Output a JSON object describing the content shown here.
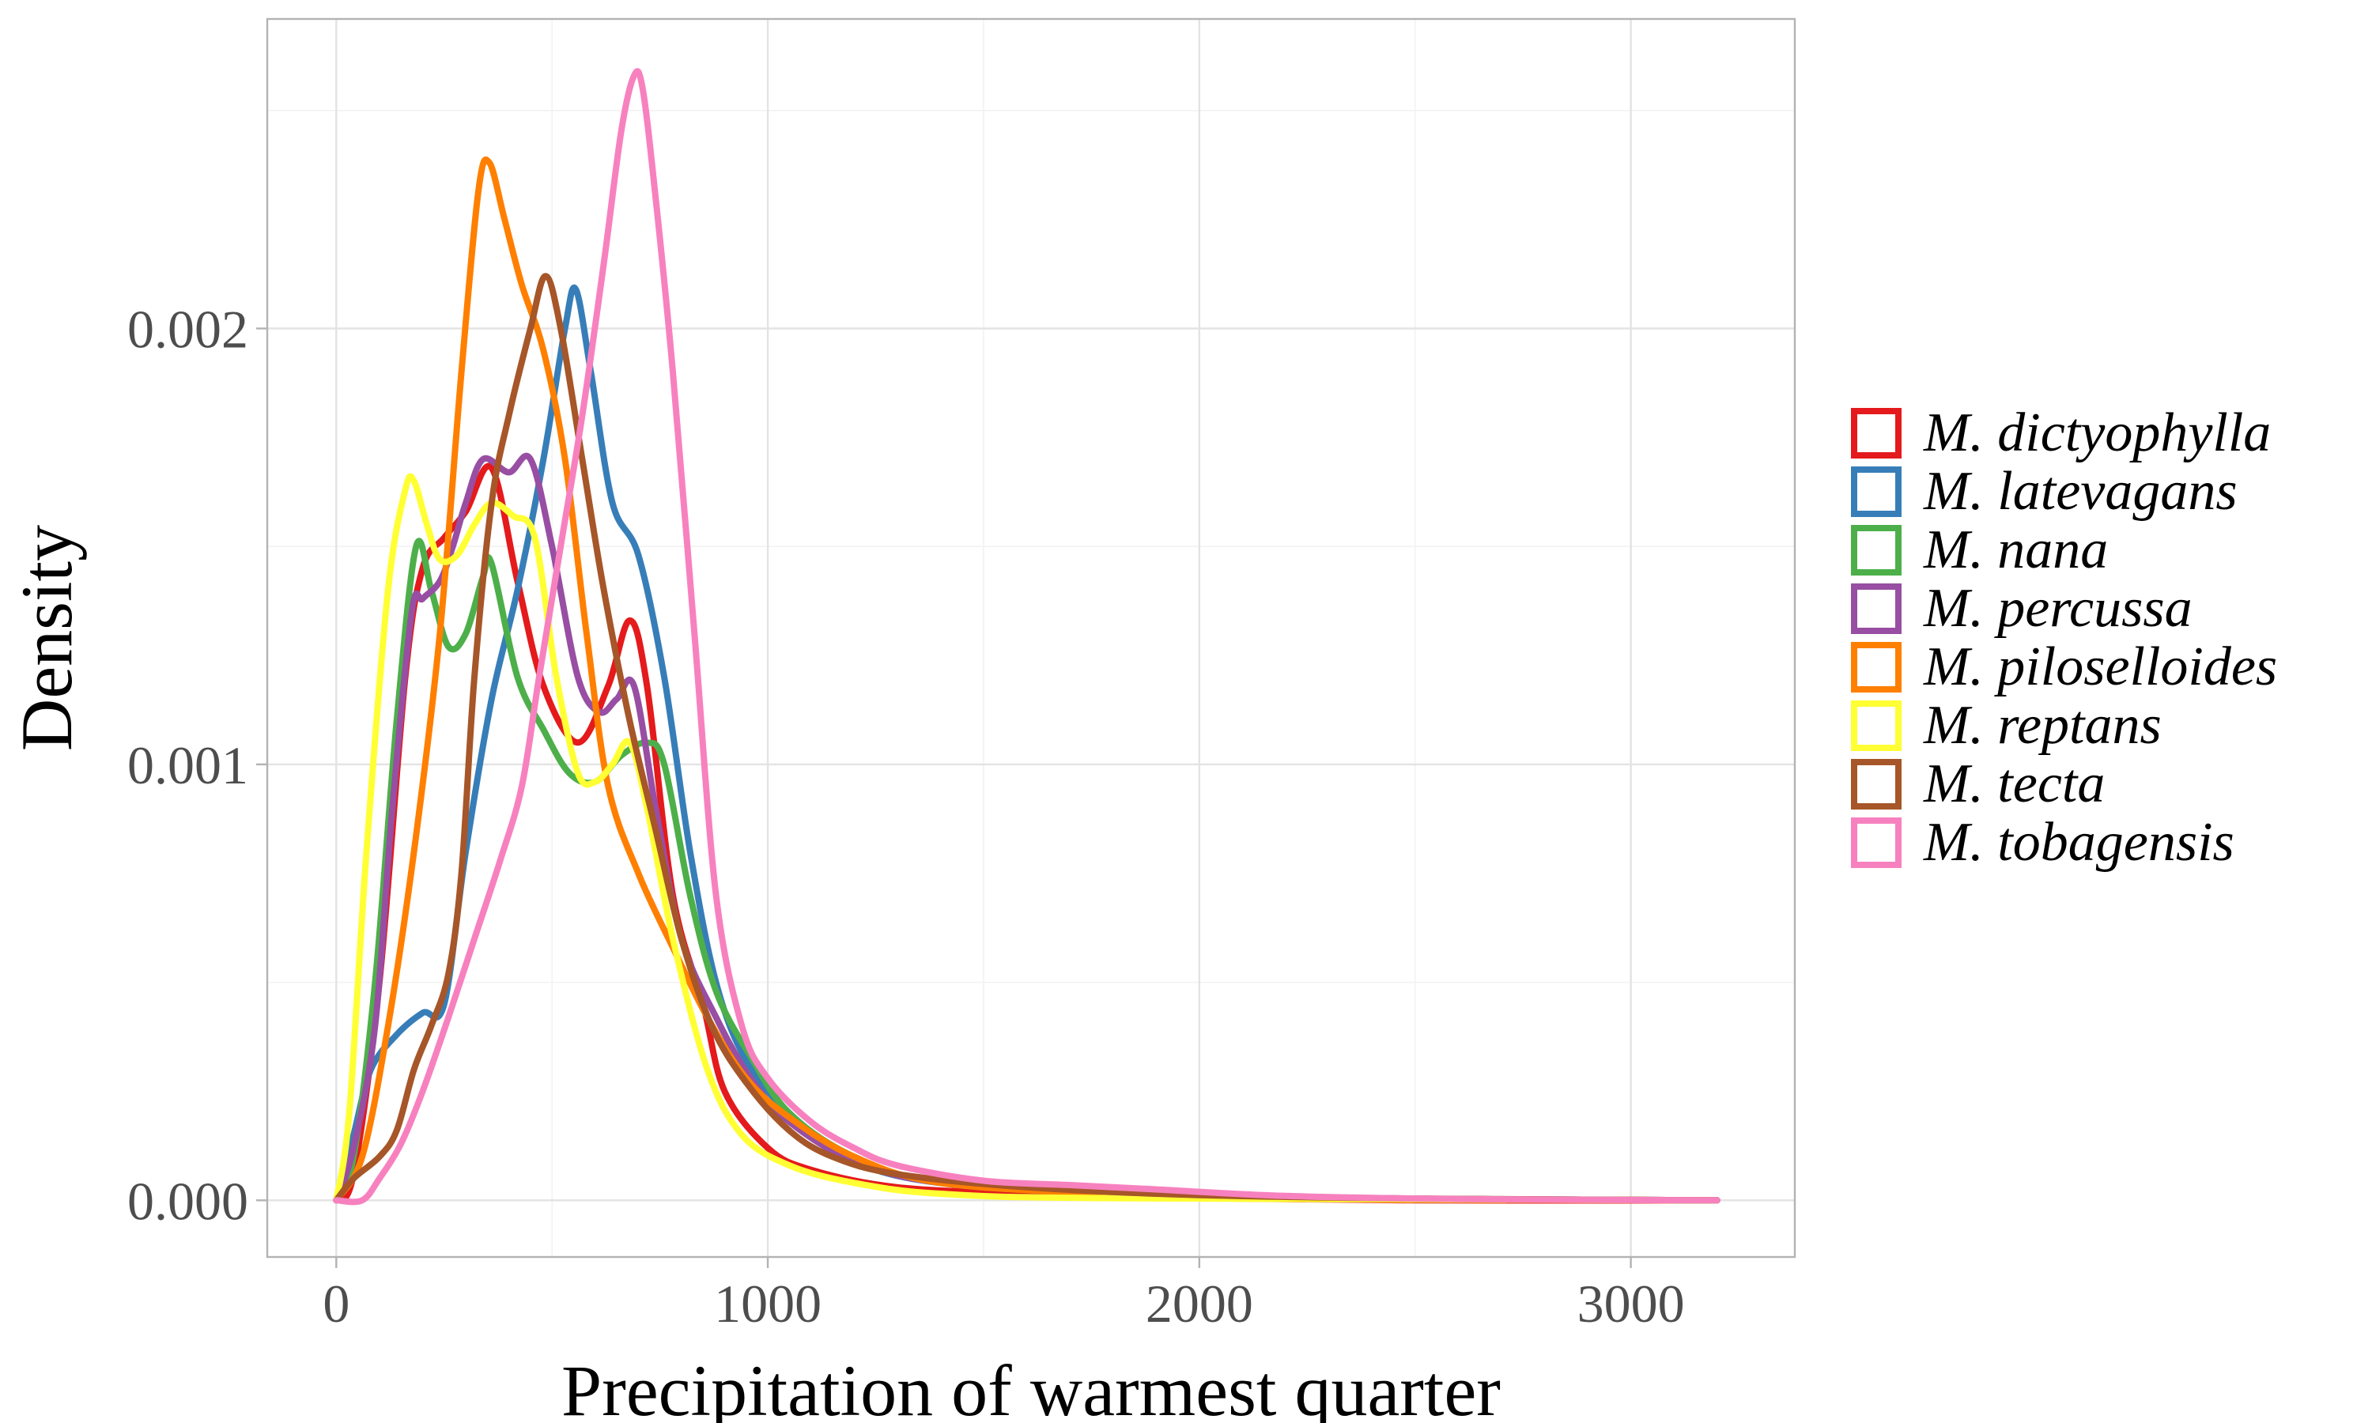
{
  "chart_data": {
    "type": "line",
    "xlabel": "Precipitation of warmest quarter",
    "ylabel": "Density",
    "xlim": [
      -160,
      3380
    ],
    "ylim": [
      -0.00013,
      0.00271
    ],
    "xticks": [
      0,
      1000,
      2000,
      3000
    ],
    "xtick_labels": [
      "0",
      "1000",
      "2000",
      "3000"
    ],
    "yticks": [
      0,
      0.001,
      0.002
    ],
    "ytick_labels": [
      "0.000",
      "0.001",
      "0.002"
    ],
    "grid": true,
    "legend_position": "right",
    "series": [
      {
        "name": "M. dictyophylla",
        "color": "#e41a1c",
        "points": [
          [
            0,
            0
          ],
          [
            40,
            6e-05
          ],
          [
            100,
            0.0005
          ],
          [
            160,
            0.0012
          ],
          [
            200,
            0.00145
          ],
          [
            250,
            0.00152
          ],
          [
            300,
            0.00158
          ],
          [
            360,
            0.00168
          ],
          [
            420,
            0.00142
          ],
          [
            480,
            0.00118
          ],
          [
            560,
            0.00105
          ],
          [
            630,
            0.00118
          ],
          [
            680,
            0.00133
          ],
          [
            720,
            0.00118
          ],
          [
            780,
            0.0007
          ],
          [
            850,
            0.00045
          ],
          [
            900,
            0.00025
          ],
          [
            1000,
            0.00012
          ],
          [
            1100,
            7e-05
          ],
          [
            1300,
            3e-05
          ],
          [
            1600,
            1.5e-05
          ],
          [
            2000,
            5e-06
          ],
          [
            2500,
            0
          ],
          [
            3200,
            0
          ]
        ]
      },
      {
        "name": "M. latevagans",
        "color": "#377eb8",
        "points": [
          [
            0,
            0
          ],
          [
            40,
            0.00015
          ],
          [
            80,
            0.0003
          ],
          [
            140,
            0.00038
          ],
          [
            200,
            0.00043
          ],
          [
            250,
            0.00045
          ],
          [
            300,
            0.0008
          ],
          [
            360,
            0.00115
          ],
          [
            420,
            0.0014
          ],
          [
            480,
            0.0017
          ],
          [
            530,
            0.002
          ],
          [
            555,
            0.00209
          ],
          [
            590,
            0.0019
          ],
          [
            640,
            0.0016
          ],
          [
            700,
            0.00148
          ],
          [
            760,
            0.0012
          ],
          [
            820,
            0.0008
          ],
          [
            880,
            0.0005
          ],
          [
            950,
            0.00032
          ],
          [
            1050,
            0.0002
          ],
          [
            1200,
            9e-05
          ],
          [
            1400,
            4e-05
          ],
          [
            1800,
            1.5e-05
          ],
          [
            2300,
            5e-06
          ],
          [
            3200,
            0
          ]
        ]
      },
      {
        "name": "M. nana",
        "color": "#4daf4a",
        "points": [
          [
            0,
            0
          ],
          [
            40,
            0.0001
          ],
          [
            90,
            0.0005
          ],
          [
            140,
            0.0011
          ],
          [
            185,
            0.0015
          ],
          [
            220,
            0.0014
          ],
          [
            260,
            0.00127
          ],
          [
            300,
            0.0013
          ],
          [
            340,
            0.00143
          ],
          [
            360,
            0.00146
          ],
          [
            420,
            0.0012
          ],
          [
            480,
            0.00108
          ],
          [
            540,
            0.00098
          ],
          [
            600,
            0.00096
          ],
          [
            660,
            0.00102
          ],
          [
            720,
            0.00105
          ],
          [
            760,
            0.001
          ],
          [
            820,
            0.0007
          ],
          [
            880,
            0.00048
          ],
          [
            960,
            0.00033
          ],
          [
            1050,
            0.0002
          ],
          [
            1200,
            0.0001
          ],
          [
            1400,
            4e-05
          ],
          [
            1800,
            1.5e-05
          ],
          [
            2300,
            5e-06
          ],
          [
            3200,
            0
          ]
        ]
      },
      {
        "name": "M. percussa",
        "color": "#984ea3",
        "points": [
          [
            0,
            0
          ],
          [
            40,
            0.00012
          ],
          [
            90,
            0.0004
          ],
          [
            130,
            0.0009
          ],
          [
            175,
            0.00135
          ],
          [
            200,
            0.00138
          ],
          [
            240,
            0.00142
          ],
          [
            270,
            0.0015
          ],
          [
            300,
            0.0016
          ],
          [
            340,
            0.0017
          ],
          [
            400,
            0.00167
          ],
          [
            450,
            0.0017
          ],
          [
            500,
            0.0015
          ],
          [
            560,
            0.0012
          ],
          [
            610,
            0.00112
          ],
          [
            650,
            0.00115
          ],
          [
            690,
            0.00118
          ],
          [
            740,
            0.0009
          ],
          [
            800,
            0.0006
          ],
          [
            880,
            0.00042
          ],
          [
            960,
            0.00028
          ],
          [
            1050,
            0.00018
          ],
          [
            1200,
            9e-05
          ],
          [
            1400,
            4e-05
          ],
          [
            1800,
            1.5e-05
          ],
          [
            2300,
            5e-06
          ],
          [
            3200,
            0
          ]
        ]
      },
      {
        "name": "M. piloselloides",
        "color": "#ff7f00",
        "points": [
          [
            0,
            0
          ],
          [
            60,
            0.0001
          ],
          [
            120,
            0.0004
          ],
          [
            180,
            0.0008
          ],
          [
            240,
            0.0013
          ],
          [
            290,
            0.0019
          ],
          [
            330,
            0.00232
          ],
          [
            355,
            0.00238
          ],
          [
            390,
            0.00225
          ],
          [
            430,
            0.0021
          ],
          [
            480,
            0.00195
          ],
          [
            530,
            0.0017
          ],
          [
            580,
            0.0013
          ],
          [
            630,
            0.00095
          ],
          [
            700,
            0.00075
          ],
          [
            780,
            0.00058
          ],
          [
            860,
            0.00042
          ],
          [
            950,
            0.00028
          ],
          [
            1050,
            0.00019
          ],
          [
            1200,
            0.0001
          ],
          [
            1400,
            4e-05
          ],
          [
            1800,
            1.5e-05
          ],
          [
            2300,
            5e-06
          ],
          [
            3200,
            0
          ]
        ]
      },
      {
        "name": "M. reptans",
        "color": "#ffff33",
        "points": [
          [
            0,
            0
          ],
          [
            30,
            0.0002
          ],
          [
            70,
            0.0008
          ],
          [
            120,
            0.0014
          ],
          [
            160,
            0.00163
          ],
          [
            180,
            0.00165
          ],
          [
            210,
            0.00155
          ],
          [
            240,
            0.00147
          ],
          [
            280,
            0.00148
          ],
          [
            320,
            0.00155
          ],
          [
            360,
            0.0016
          ],
          [
            410,
            0.00157
          ],
          [
            460,
            0.00152
          ],
          [
            510,
            0.0012
          ],
          [
            560,
            0.00098
          ],
          [
            600,
            0.00096
          ],
          [
            640,
            0.001
          ],
          [
            680,
            0.00105
          ],
          [
            720,
            0.0009
          ],
          [
            780,
            0.0006
          ],
          [
            860,
            0.0003
          ],
          [
            940,
            0.00015
          ],
          [
            1050,
            8e-05
          ],
          [
            1200,
            4e-05
          ],
          [
            1400,
            1.5e-05
          ],
          [
            1800,
            5e-06
          ],
          [
            3200,
            0
          ]
        ]
      },
      {
        "name": "M. tecta",
        "color": "#a65628",
        "points": [
          [
            0,
            0
          ],
          [
            40,
            5e-05
          ],
          [
            100,
            0.0001
          ],
          [
            140,
            0.00016
          ],
          [
            180,
            0.0003
          ],
          [
            220,
            0.0004
          ],
          [
            260,
            0.00052
          ],
          [
            290,
            0.00075
          ],
          [
            320,
            0.0012
          ],
          [
            360,
            0.0016
          ],
          [
            400,
            0.0018
          ],
          [
            450,
            0.002
          ],
          [
            485,
            0.00212
          ],
          [
            520,
            0.002
          ],
          [
            570,
            0.0017
          ],
          [
            620,
            0.0014
          ],
          [
            680,
            0.0011
          ],
          [
            740,
            0.00085
          ],
          [
            800,
            0.0006
          ],
          [
            870,
            0.0004
          ],
          [
            950,
            0.00027
          ],
          [
            1050,
            0.00016
          ],
          [
            1150,
            0.0001
          ],
          [
            1300,
            6e-05
          ],
          [
            1600,
            3e-05
          ],
          [
            2000,
            1.2e-05
          ],
          [
            2500,
            4e-06
          ],
          [
            3200,
            0
          ]
        ]
      },
      {
        "name": "M. tobagensis",
        "color": "#f781bf",
        "points": [
          [
            0,
            0
          ],
          [
            60,
            0
          ],
          [
            100,
            5e-05
          ],
          [
            150,
            0.00013
          ],
          [
            200,
            0.00025
          ],
          [
            260,
            0.00042
          ],
          [
            320,
            0.0006
          ],
          [
            380,
            0.00078
          ],
          [
            430,
            0.00095
          ],
          [
            470,
            0.0012
          ],
          [
            520,
            0.0015
          ],
          [
            570,
            0.0018
          ],
          [
            620,
            0.00215
          ],
          [
            660,
            0.00245
          ],
          [
            690,
            0.00258
          ],
          [
            710,
            0.00255
          ],
          [
            740,
            0.0023
          ],
          [
            780,
            0.0019
          ],
          [
            830,
            0.0013
          ],
          [
            880,
            0.0007
          ],
          [
            940,
            0.0004
          ],
          [
            1000,
            0.00028
          ],
          [
            1100,
            0.00018
          ],
          [
            1200,
            0.00012
          ],
          [
            1300,
            8e-05
          ],
          [
            1500,
            4.5e-05
          ],
          [
            1700,
            3.5e-05
          ],
          [
            1900,
            2.5e-05
          ],
          [
            2200,
            1e-05
          ],
          [
            2600,
            3e-06
          ],
          [
            3200,
            0
          ]
        ]
      }
    ]
  }
}
